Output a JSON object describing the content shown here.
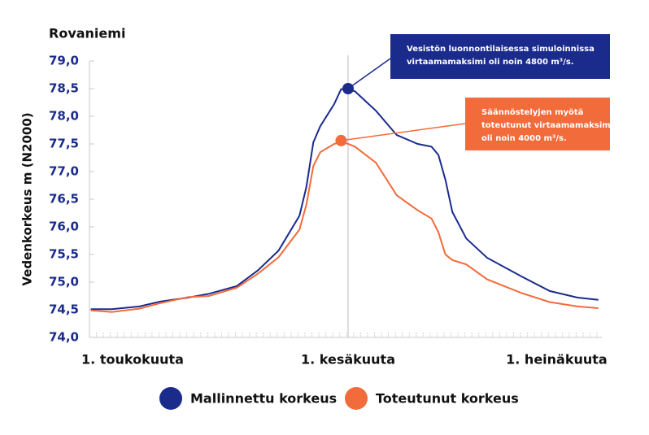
{
  "chart_data": {
    "type": "line",
    "title": "Rovaniemi",
    "y_label": "Vedenkorkeus m (N2000)",
    "x": [
      -6,
      -3,
      1,
      4,
      8,
      11,
      15,
      18,
      21,
      24,
      25,
      26,
      27,
      29,
      30,
      31,
      32,
      35,
      38,
      41,
      43,
      44,
      45,
      46,
      48,
      51,
      56,
      60,
      64,
      67
    ],
    "series": [
      {
        "name": "Mallinnettu korkeus",
        "color": "#1a2b8c",
        "values": [
          74.51,
          74.51,
          74.56,
          74.65,
          74.72,
          74.79,
          74.93,
          75.21,
          75.57,
          76.2,
          76.72,
          77.53,
          77.82,
          78.22,
          78.49,
          78.5,
          78.45,
          78.1,
          77.66,
          77.5,
          77.45,
          77.3,
          76.85,
          76.27,
          75.79,
          75.44,
          75.1,
          74.84,
          74.72,
          74.68
        ]
      },
      {
        "name": "Toteutunut korkeus",
        "color": "#f26b3a",
        "values": [
          74.49,
          74.46,
          74.52,
          74.62,
          74.73,
          74.75,
          74.9,
          75.15,
          75.45,
          75.95,
          76.4,
          77.1,
          77.35,
          77.5,
          77.54,
          77.5,
          77.45,
          77.16,
          76.57,
          76.3,
          76.15,
          75.9,
          75.5,
          75.4,
          75.32,
          75.05,
          74.8,
          74.64,
          74.56,
          74.53
        ]
      }
    ],
    "xlim": [
      -6.2,
      67.5
    ],
    "xticks": [
      {
        "value": 0,
        "label": "1. toukokuuta"
      },
      {
        "value": 31,
        "label": "1. kesäkuuta"
      },
      {
        "value": 61,
        "label": "1. heinäkuuta"
      }
    ],
    "ylim": [
      74,
      79
    ],
    "yticks": [
      {
        "value": 74,
        "label": "74,0"
      },
      {
        "value": 74.5,
        "label": "74,5"
      },
      {
        "value": 75,
        "label": "75,0"
      },
      {
        "value": 75.5,
        "label": "75,5"
      },
      {
        "value": 76,
        "label": "76,0"
      },
      {
        "value": 76.5,
        "label": "76,5"
      },
      {
        "value": 77,
        "label": "77,0"
      },
      {
        "value": 77.5,
        "label": "77,5"
      },
      {
        "value": 78,
        "label": "78,0"
      },
      {
        "value": 78.5,
        "label": "78,5"
      },
      {
        "value": 79,
        "label": "79,0"
      }
    ],
    "annotations": [
      {
        "lines": [
          "Vesistön luonnontilaisessa simuloinnissa",
          "virtaamamaksimi oli noin 4800 m³/s."
        ],
        "x": 31,
        "y": 78.5,
        "series": 0
      },
      {
        "lines": [
          "Säännöstelyjen myötä",
          "toteutunut virtaamamaksimi",
          "oli noin 4000 m³/s."
        ],
        "x": 30,
        "y": 77.56,
        "series": 1
      }
    ]
  }
}
